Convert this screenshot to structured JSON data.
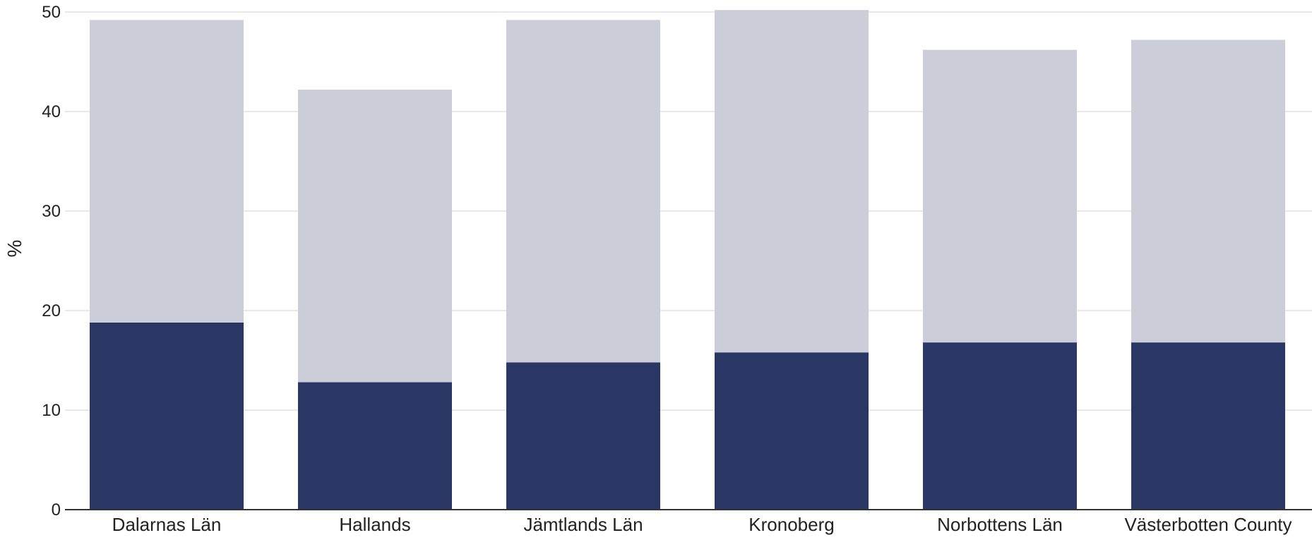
{
  "chart_data": {
    "type": "bar",
    "stacked": true,
    "categories": [
      "Dalarnas Län",
      "Hallands",
      "Jämtlands Län",
      "Kronoberg",
      "Norbottens Län",
      "Västerbotten County"
    ],
    "series": [
      {
        "values": [
          18.8,
          12.8,
          14.8,
          15.8,
          16.8,
          16.8
        ]
      },
      {
        "values": [
          30.4,
          29.4,
          34.4,
          34.4,
          29.4,
          30.4
        ]
      }
    ],
    "title": "",
    "xlabel": "",
    "ylabel": "%",
    "ylim": [
      0,
      50
    ],
    "yticks": [
      0,
      10,
      20,
      30,
      40,
      50
    ],
    "grid": true,
    "colors": {
      "series_0": "#2a3664",
      "series_1": "#cbcdd9",
      "grid": "#e8e8e8",
      "axis": "#333333"
    }
  }
}
